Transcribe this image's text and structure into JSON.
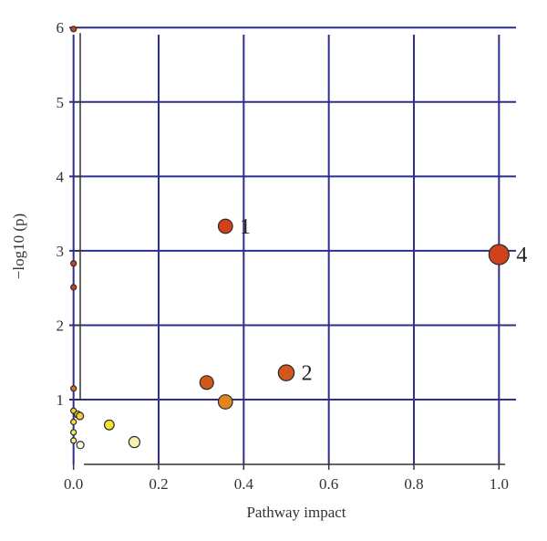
{
  "chart_data": {
    "type": "scatter",
    "title": "",
    "xlabel": "Pathway impact",
    "ylabel": "−log10 (p)",
    "xlim": [
      -0.04,
      1.04
    ],
    "ylim": [
      0.13,
      6.15
    ],
    "xticks": [
      0.0,
      0.2,
      0.4,
      0.6,
      0.8,
      1.0
    ],
    "xtick_labels": [
      "0.0",
      "0.2",
      "0.4",
      "0.6",
      "0.8",
      "1.0"
    ],
    "yticks": [
      1,
      2,
      3,
      4,
      5,
      6
    ],
    "ytick_labels": [
      "1",
      "2",
      "3",
      "4",
      "5",
      "6"
    ],
    "grid": true,
    "grid_color": "#2e2e8f",
    "size_encoding": "pathway impact",
    "color_encoding": "-log10(p) (yellow = low, red = high)",
    "points": [
      {
        "x": 0.0,
        "y": 5.98,
        "color": "#d1421b",
        "label": ""
      },
      {
        "x": 0.357,
        "y": 3.33,
        "color": "#d1421b",
        "label": "1"
      },
      {
        "x": 1.0,
        "y": 2.95,
        "color": "#d1421b",
        "label": "4"
      },
      {
        "x": 0.0,
        "y": 2.83,
        "color": "#d1421b",
        "label": ""
      },
      {
        "x": 0.0,
        "y": 2.51,
        "color": "#d1421b",
        "label": ""
      },
      {
        "x": 0.5,
        "y": 1.36,
        "color": "#d1571b",
        "label": "2"
      },
      {
        "x": 0.313,
        "y": 1.23,
        "color": "#d1571b",
        "label": ""
      },
      {
        "x": 0.0,
        "y": 1.15,
        "color": "#d96c1f",
        "label": ""
      },
      {
        "x": 0.357,
        "y": 0.97,
        "color": "#e0851f",
        "label": ""
      },
      {
        "x": 0.0,
        "y": 0.85,
        "color": "#f2d22a",
        "label": ""
      },
      {
        "x": 0.01,
        "y": 0.8,
        "color": "#f2d22a",
        "label": ""
      },
      {
        "x": 0.015,
        "y": 0.78,
        "color": "#f2d22a",
        "label": ""
      },
      {
        "x": 0.0,
        "y": 0.7,
        "color": "#f5df3a",
        "label": ""
      },
      {
        "x": 0.084,
        "y": 0.66,
        "color": "#f7e42a",
        "label": ""
      },
      {
        "x": 0.0,
        "y": 0.56,
        "color": "#f5e650",
        "label": ""
      },
      {
        "x": 0.0,
        "y": 0.45,
        "color": "#f5ec80",
        "label": ""
      },
      {
        "x": 0.143,
        "y": 0.43,
        "color": "#f8f1b0",
        "label": ""
      },
      {
        "x": 0.016,
        "y": 0.39,
        "color": "#fbfbf0",
        "label": ""
      }
    ]
  }
}
